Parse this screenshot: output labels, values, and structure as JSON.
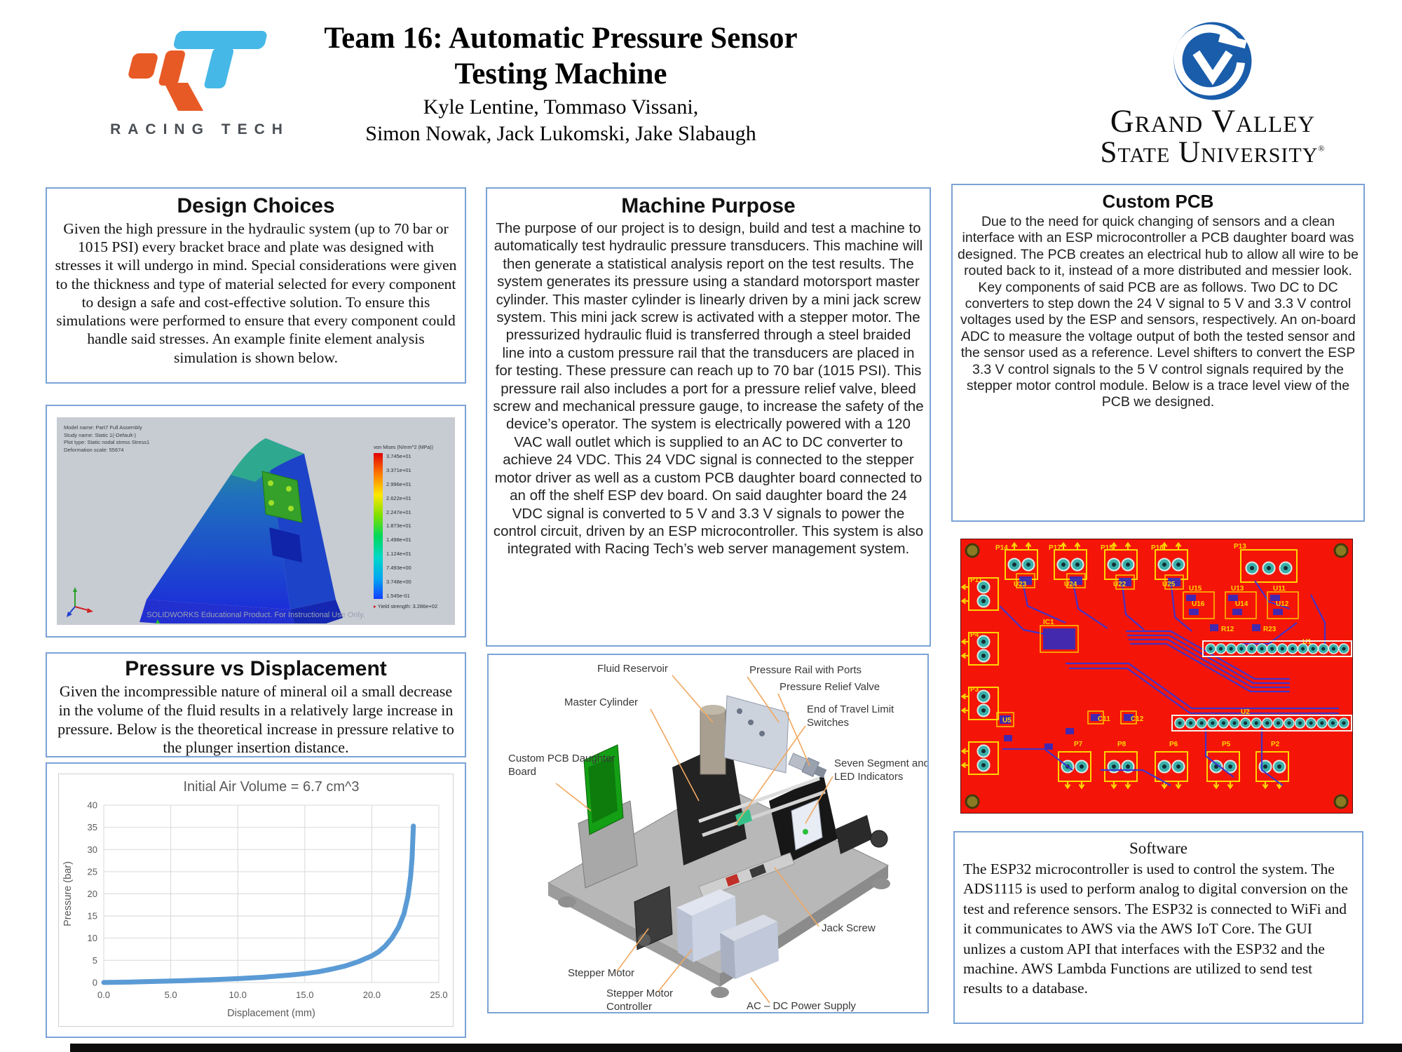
{
  "header": {
    "title_line1": "Team 16: Automatic Pressure Sensor",
    "title_line2": "Testing Machine",
    "authors_line1": "Kyle Lentine, Tommaso Vissani,",
    "authors_line2": "Simon Nowak, Jack Lukomski, Jake Slabaugh",
    "racing_tech_text": "RACING TECH",
    "gvsu_line1": "Grand Valley",
    "gvsu_line2": "State University",
    "gvsu_reg": "®"
  },
  "sections": {
    "design_choices": {
      "title": "Design Choices",
      "body": "Given the high pressure in the hydraulic system (up to 70 bar or 1015 PSI) every bracket brace and plate was designed with stresses it will undergo in mind. Special considerations were given to the thickness and type of material selected for every component to design a safe and cost-effective solution. To ensure this simulations were performed to ensure that every component could handle said stresses. An example finite element analysis simulation is shown below."
    },
    "machine_purpose": {
      "title": "Machine Purpose",
      "body": "The purpose of our project is to design, build and test a machine to automatically test hydraulic pressure transducers. This machine will then generate a statistical analysis report on the test results. The system generates its pressure using a standard motorsport master cylinder. This master cylinder is linearly driven by a mini jack screw system. This mini jack screw is activated with a stepper motor. The pressurized hydraulic fluid is transferred through a steel braided line into a custom pressure rail that the transducers are placed in for testing. These pressure can reach up to 70 bar (1015 PSI). This pressure rail also includes a port for a pressure relief valve, bleed screw and mechanical pressure gauge, to increase the safety of the device’s operator. The system is electrically powered with a 120 VAC wall outlet which is supplied to an AC to DC converter to achieve 24 VDC. This 24 VDC signal is connected to the stepper motor driver as well as a custom PCB daughter board connected to an off the shelf ESP dev board. On said daughter board the 24 VDC signal is converted to 5 V and 3.3 V signals to power the control circuit, driven by an ESP microcontroller. This system is also integrated with Racing Tech’s web server management system."
    },
    "custom_pcb": {
      "title": "Custom PCB",
      "body": "Due to the need for quick changing of sensors and a clean interface with an ESP microcontroller a PCB daughter board was designed. The PCB creates an electrical hub to allow all wire to be routed back to it, instead of a more distributed and messier look. Key components of said PCB are as follows. Two DC to DC converters to step down the 24 V signal to 5 V and 3.3 V control voltages used by the ESP and sensors, respectively. An on-board ADC to measure the voltage output of both the tested sensor and the sensor used as a reference. Level shifters to convert the ESP 3.3 V control signals to the 5 V control signals required by the stepper motor control module. Below is a trace level view of the PCB we designed."
    },
    "pressure_vs_displacement": {
      "title": "Pressure vs Displacement",
      "body": "Given the incompressible nature of mineral oil a small decrease in the volume of the fluid results in a relatively large increase in pressure. Below is the theoretical increase in pressure relative to the plunger insertion distance."
    },
    "software": {
      "title": "Software",
      "body": "The ESP32 microcontroller is used to control the system. The ADS1115 is used to perform analog to digital conversion on the test and reference sensors. The ESP32 is connected to WiFi and it communicates to AWS via the AWS IoT Core. The GUI unlizes a custom API that interfaces with the ESP32 and the machine. AWS Lambda Functions are utilized to send test results to a database."
    }
  },
  "fea": {
    "info_lines": [
      "Model name: Part7 Full Assembly",
      "Study name: Static 1(-Default-)",
      "Plot type: Static nodal stress Stress1",
      "Deformation scale: 55674"
    ],
    "legend_title": "von Mises (N/mm^2 (MPa))",
    "legend_values": [
      "3.745e+01",
      "3.371e+01",
      "2.996e+01",
      "2.622e+01",
      "2.247e+01",
      "1.873e+01",
      "1.498e+01",
      "1.124e+01",
      "7.493e+00",
      "3.748e+00",
      "1.545e-01"
    ],
    "yield_label": "Yield strength: 3.286e+02",
    "watermark": "SOLIDWORKS Educational Product. For Instructional Use Only."
  },
  "chart_data": {
    "type": "line",
    "title": "Initial Air Volume = 6.7 cm^3",
    "xlabel": "Displacement (mm)",
    "ylabel": "Pressure (bar)",
    "xlim": [
      0,
      25
    ],
    "ylim": [
      0,
      40
    ],
    "xticks": [
      "0.0",
      "5.0",
      "10.0",
      "15.0",
      "20.0",
      "25.0"
    ],
    "yticks": [
      0,
      5,
      10,
      15,
      20,
      25,
      30,
      35,
      40
    ],
    "grid": true,
    "legend_position": "none",
    "line_color": "#5b9bd5",
    "points": [
      [
        0,
        0
      ],
      [
        2,
        0.1
      ],
      [
        4,
        0.25
      ],
      [
        6,
        0.4
      ],
      [
        8,
        0.6
      ],
      [
        10,
        0.85
      ],
      [
        12,
        1.2
      ],
      [
        14,
        1.7
      ],
      [
        15,
        2.0
      ],
      [
        16,
        2.4
      ],
      [
        17,
        3.0
      ],
      [
        18,
        3.7
      ],
      [
        19,
        4.7
      ],
      [
        20,
        6.0
      ],
      [
        20.5,
        6.9
      ],
      [
        21,
        8.2
      ],
      [
        21.5,
        10.0
      ],
      [
        22,
        12.5
      ],
      [
        22.4,
        15.5
      ],
      [
        22.7,
        19.5
      ],
      [
        22.9,
        24.0
      ],
      [
        23.0,
        28.0
      ],
      [
        23.1,
        35.3
      ]
    ]
  },
  "machine_diagram": {
    "labels": [
      "Fluid Reservoir",
      "Pressure Rail with Ports",
      "Pressure Relief Valve",
      "Master Cylinder",
      "End of Travel Limit\nSwitches",
      "Custom PCB Daughter\nBoard",
      "Seven Segment and\nLED Indicators",
      "Jack Screw",
      "Stepper Motor",
      "Stepper Motor\nController",
      "AC – DC Power Supply"
    ]
  },
  "pcb": {
    "ref_labels": [
      "P14",
      "P17",
      "P15",
      "P16",
      "P13",
      "U23",
      "U24",
      "U22",
      "U25",
      "U15",
      "U13",
      "U11",
      "U16",
      "U14",
      "U12",
      "R12",
      "R23",
      "IC1",
      "P11",
      "P4",
      "P3",
      "U5",
      "C11",
      "C12",
      "U2",
      "U1",
      "P7",
      "P8",
      "P6",
      "P5",
      "P2"
    ],
    "board_color": "#f51508",
    "trace_color": "#3a35d2",
    "silkscreen_color": "#ffd400",
    "pad_color": "#3aafa9"
  }
}
